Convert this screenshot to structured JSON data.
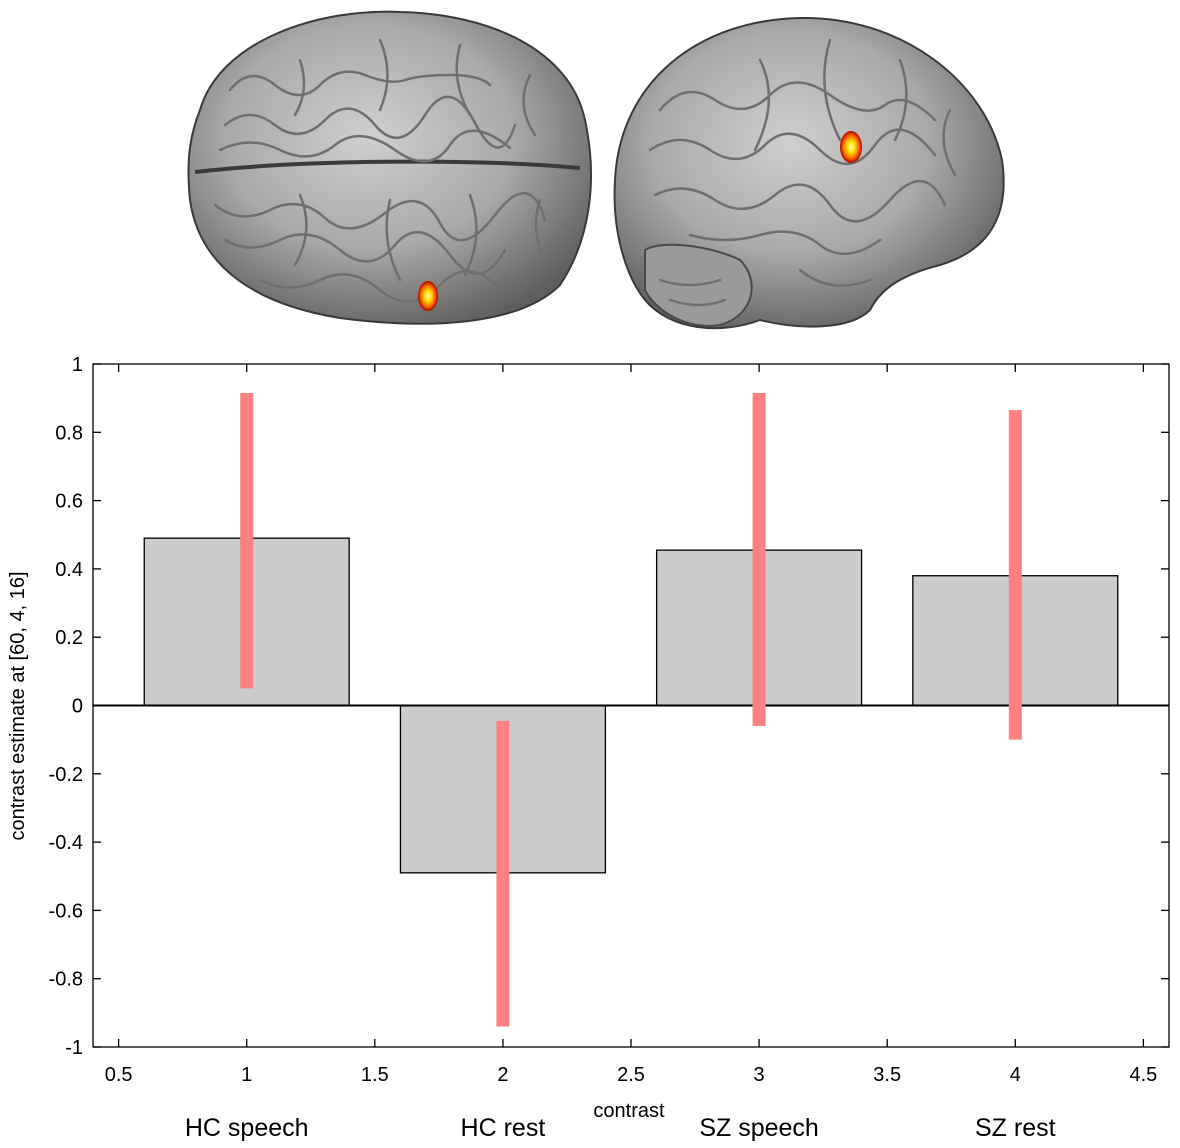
{
  "chart_data": {
    "type": "bar",
    "title": "",
    "xlabel": "contrast",
    "ylabel": "contrast estimate at [60, 4, 16]",
    "xlim": [
      0.4,
      4.6
    ],
    "ylim": [
      -1,
      1
    ],
    "xticks": [
      0.5,
      1,
      1.5,
      2,
      2.5,
      3,
      3.5,
      4,
      4.5
    ],
    "xtick_labels": [
      "0.5",
      "1",
      "1.5",
      "2",
      "2.5",
      "3",
      "3.5",
      "4",
      "4.5"
    ],
    "yticks": [
      -1,
      -0.8,
      -0.6,
      -0.4,
      -0.2,
      0,
      0.2,
      0.4,
      0.6,
      0.8,
      1
    ],
    "ytick_labels": [
      "-1",
      "-0.8",
      "-0.6",
      "-0.4",
      "-0.2",
      "0",
      "0.2",
      "0.4",
      "0.6",
      "0.8",
      "1"
    ],
    "categories": [
      "HC speech",
      "HC rest",
      "SZ speech",
      "SZ rest"
    ],
    "x": [
      1,
      2,
      3,
      4
    ],
    "values": [
      0.49,
      -0.49,
      0.455,
      0.38
    ],
    "error_bars": [
      {
        "low": 0.05,
        "high": 0.915
      },
      {
        "low": -0.94,
        "high": -0.045
      },
      {
        "low": -0.06,
        "high": 0.915
      },
      {
        "low": -0.1,
        "high": 0.865
      }
    ],
    "bar_width": 0.8,
    "grid": false,
    "legend": "none",
    "colors": {
      "bar_fill": "#cccccc",
      "bar_edge": "#000000",
      "error_bar": "#ff8080",
      "zero_line": "#000000"
    }
  },
  "brain_images": [
    {
      "view": "dorsal",
      "activation": "right-hemisphere-blob"
    },
    {
      "view": "lateral-right",
      "activation": "frontal-blob"
    }
  ]
}
